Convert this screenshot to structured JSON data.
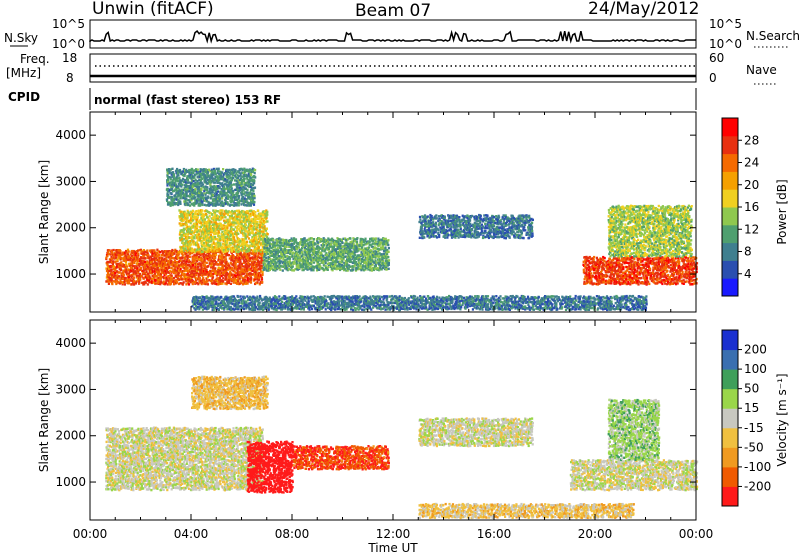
{
  "header": {
    "radar": "Unwin (fitACF)",
    "beam": "Beam 07",
    "date": "24/May/2012"
  },
  "strip_labels": {
    "nsky": "N.Sky",
    "nsky_ticks": [
      "10^5",
      "10^0"
    ],
    "nsearch": "N.Search",
    "nsearch_ticks": [
      "10^5",
      "10^0"
    ],
    "freq_line1": "Freq.",
    "freq_line2": "[MHz]",
    "freq_ticks": [
      "18",
      "8"
    ],
    "nave": "Nave",
    "nave_ticks": [
      "60",
      "0"
    ],
    "cpid": "CPID",
    "cpid_text": "normal (fast stereo) 153 RF"
  },
  "axes": {
    "ylabel": "Slant Range [km]",
    "xlabel": "Time UT",
    "xticks": [
      "00:00",
      "04:00",
      "08:00",
      "12:00",
      "16:00",
      "20:00",
      "00:00"
    ],
    "yticks": [
      "1000",
      "2000",
      "3000",
      "4000"
    ]
  },
  "colorbars": {
    "power": {
      "label": "Power [dB]",
      "ticks": [
        "28",
        "24",
        "20",
        "16",
        "12",
        "8",
        "4"
      ]
    },
    "velocity": {
      "label": "Velocity [m s⁻¹]",
      "ticks": [
        "200",
        "100",
        "50",
        "15",
        "-15",
        "-50",
        "-100",
        "-200"
      ]
    }
  },
  "colors": {
    "power_scale": [
      "#1a1aff",
      "#2a4fb0",
      "#3f7f8f",
      "#4f9f6f",
      "#8fc84f",
      "#f0d020",
      "#f5a000",
      "#f56a00",
      "#e83010",
      "#ff0000"
    ],
    "velocity_scale": [
      "#ff1a1a",
      "#f05a00",
      "#f09a20",
      "#f0c040",
      "#c8c8c0",
      "#9ad64a",
      "#3f9f5a",
      "#3a6fb0",
      "#1a30d0"
    ]
  },
  "chart_data": [
    {
      "type": "heatmap",
      "title": "Power [dB]",
      "xlabel": "Time UT",
      "ylabel": "Slant Range [km]",
      "xlim": [
        0,
        24
      ],
      "ylim": [
        180,
        4500
      ],
      "clim": [
        0,
        30
      ],
      "regions": [
        {
          "t0": 0.6,
          "t1": 6.8,
          "r0": 800,
          "r1": 1550,
          "level": 24
        },
        {
          "t0": 3.5,
          "t1": 7.0,
          "r0": 1500,
          "r1": 2400,
          "level": 16
        },
        {
          "t0": 3.0,
          "t1": 6.5,
          "r0": 2500,
          "r1": 3300,
          "level": 9
        },
        {
          "t0": 6.8,
          "t1": 11.8,
          "r0": 1100,
          "r1": 1800,
          "level": 11
        },
        {
          "t0": 13.0,
          "t1": 17.5,
          "r0": 1800,
          "r1": 2300,
          "level": 7
        },
        {
          "t0": 19.5,
          "t1": 24.0,
          "r0": 800,
          "r1": 1400,
          "level": 25
        },
        {
          "t0": 20.5,
          "t1": 23.8,
          "r0": 1400,
          "r1": 2500,
          "level": 14
        },
        {
          "t0": 4.0,
          "t1": 22.0,
          "r0": 250,
          "r1": 550,
          "level": 7
        }
      ]
    },
    {
      "type": "heatmap",
      "title": "Velocity [m s⁻¹]",
      "xlabel": "Time UT",
      "ylabel": "Slant Range [km]",
      "xlim": [
        0,
        24
      ],
      "ylim": [
        180,
        4500
      ],
      "clim": [
        -200,
        200
      ],
      "regions": [
        {
          "t0": 0.6,
          "t1": 6.8,
          "r0": 850,
          "r1": 2200,
          "level": 0
        },
        {
          "t0": 4.0,
          "t1": 7.0,
          "r0": 2600,
          "r1": 3300,
          "level": -50
        },
        {
          "t0": 6.2,
          "t1": 8.0,
          "r0": 800,
          "r1": 1900,
          "level": -200
        },
        {
          "t0": 8.0,
          "t1": 11.8,
          "r0": 1300,
          "r1": 1800,
          "level": -150
        },
        {
          "t0": 13.0,
          "t1": 17.5,
          "r0": 1800,
          "r1": 2400,
          "level": 0
        },
        {
          "t0": 19.0,
          "t1": 24.0,
          "r0": 850,
          "r1": 1500,
          "level": 0
        },
        {
          "t0": 20.5,
          "t1": 22.5,
          "r0": 1500,
          "r1": 2800,
          "level": 40
        },
        {
          "t0": 13.0,
          "t1": 21.5,
          "r0": 250,
          "r1": 550,
          "level": -40
        }
      ]
    }
  ]
}
